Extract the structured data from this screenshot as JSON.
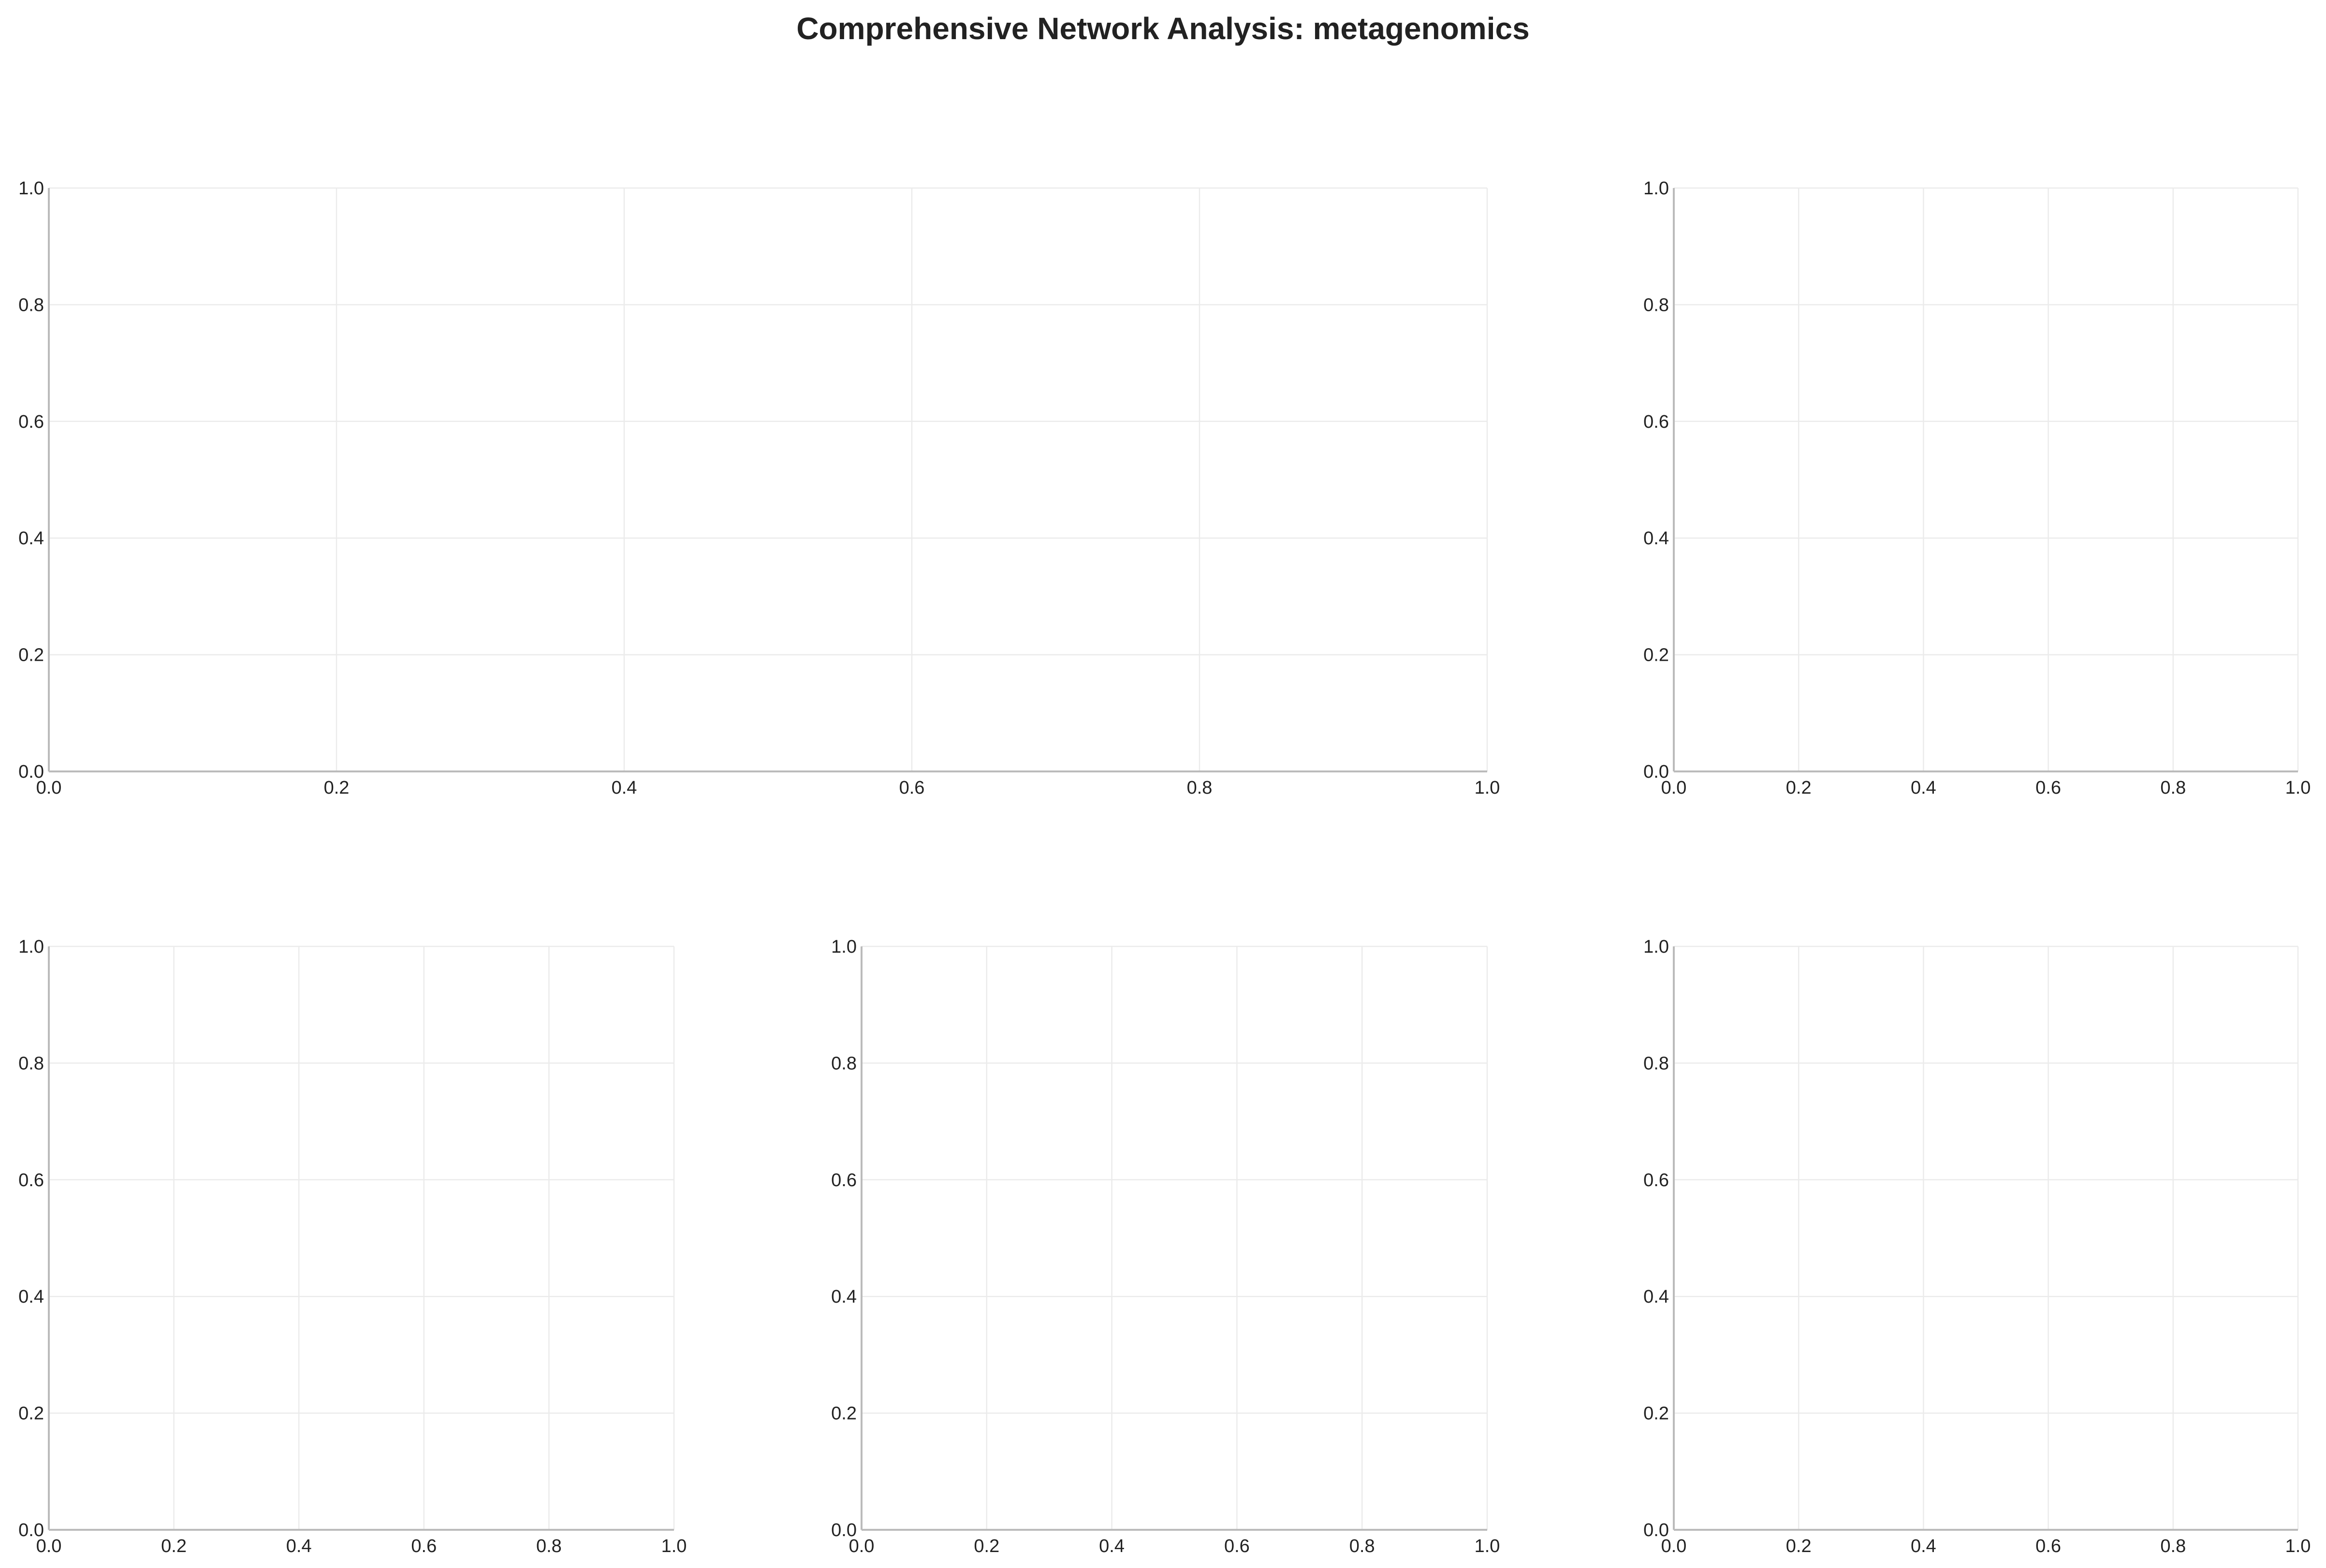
{
  "figure": {
    "title": "Comprehensive Network Analysis: metagenomics"
  },
  "colors": {
    "grid": "#ebebeb",
    "spine": "#bbbbbb",
    "text": "#222222",
    "background": "#ffffff"
  },
  "chart_data": [
    {
      "type": "scatter",
      "title": "",
      "xlabel": "",
      "ylabel": "",
      "xlim": [
        0,
        1
      ],
      "ylim": [
        0,
        1
      ],
      "xticks": [
        "0.0",
        "0.2",
        "0.4",
        "0.6",
        "0.8",
        "1.0"
      ],
      "yticks": [
        "0.0",
        "0.2",
        "0.4",
        "0.6",
        "0.8",
        "1.0"
      ],
      "grid": true,
      "series": []
    },
    {
      "type": "scatter",
      "title": "",
      "xlabel": "",
      "ylabel": "",
      "xlim": [
        0,
        1
      ],
      "ylim": [
        0,
        1
      ],
      "xticks": [
        "0.0",
        "0.2",
        "0.4",
        "0.6",
        "0.8",
        "1.0"
      ],
      "yticks": [
        "0.0",
        "0.2",
        "0.4",
        "0.6",
        "0.8",
        "1.0"
      ],
      "grid": true,
      "series": []
    },
    {
      "type": "scatter",
      "title": "",
      "xlabel": "",
      "ylabel": "",
      "xlim": [
        0,
        1
      ],
      "ylim": [
        0,
        1
      ],
      "xticks": [
        "0.0",
        "0.2",
        "0.4",
        "0.6",
        "0.8",
        "1.0"
      ],
      "yticks": [
        "0.0",
        "0.2",
        "0.4",
        "0.6",
        "0.8",
        "1.0"
      ],
      "grid": true,
      "series": []
    },
    {
      "type": "scatter",
      "title": "",
      "xlabel": "",
      "ylabel": "",
      "xlim": [
        0,
        1
      ],
      "ylim": [
        0,
        1
      ],
      "xticks": [
        "0.0",
        "0.2",
        "0.4",
        "0.6",
        "0.8",
        "1.0"
      ],
      "yticks": [
        "0.0",
        "0.2",
        "0.4",
        "0.6",
        "0.8",
        "1.0"
      ],
      "grid": true,
      "series": []
    },
    {
      "type": "scatter",
      "title": "",
      "xlabel": "",
      "ylabel": "",
      "xlim": [
        0,
        1
      ],
      "ylim": [
        0,
        1
      ],
      "xticks": [
        "0.0",
        "0.2",
        "0.4",
        "0.6",
        "0.8",
        "1.0"
      ],
      "yticks": [
        "0.0",
        "0.2",
        "0.4",
        "0.6",
        "0.8",
        "1.0"
      ],
      "grid": true,
      "series": []
    }
  ]
}
